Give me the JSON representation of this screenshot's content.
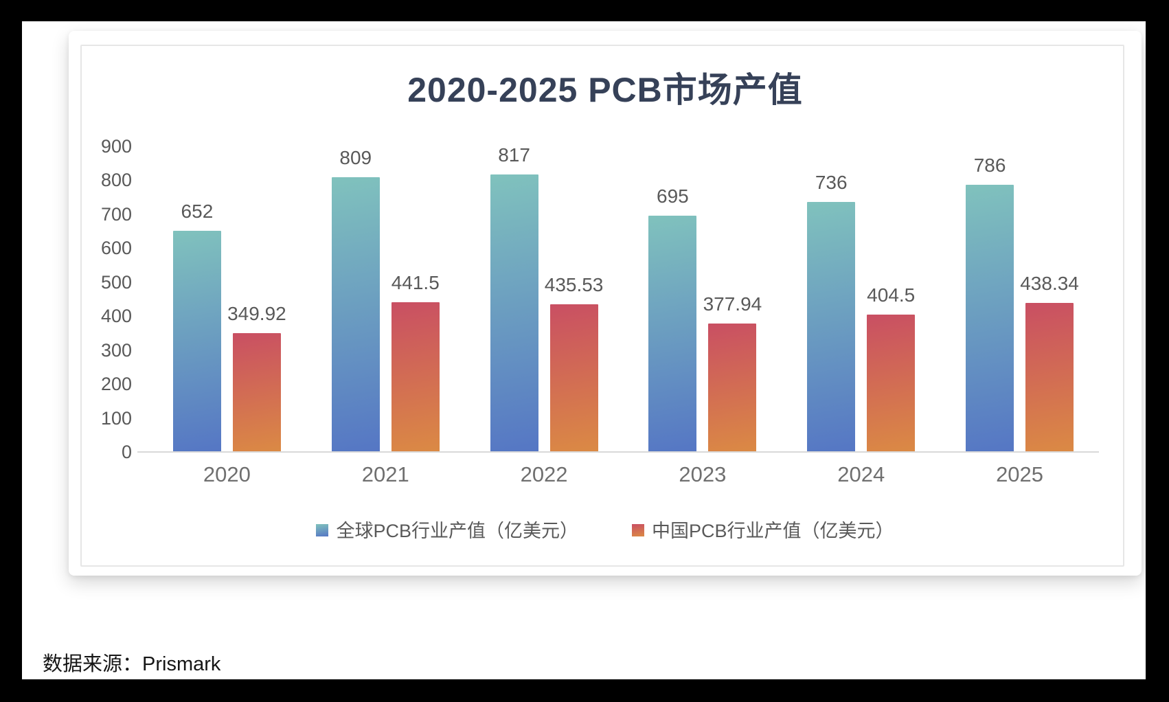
{
  "page": {
    "source_note": "数据来源：Prismark"
  },
  "chart_data": {
    "type": "bar",
    "title": "2020-2025 PCB市场产值",
    "categories": [
      "2020",
      "2021",
      "2022",
      "2023",
      "2024",
      "2025"
    ],
    "series": [
      {
        "key": "global",
        "name": "全球PCB行业产值（亿美元）",
        "values": [
          652,
          809,
          817,
          695,
          736,
          786
        ],
        "color_top": "#80C2BD",
        "color_bottom": "#5576C4"
      },
      {
        "key": "china",
        "name": "中国PCB行业产值（亿美元）",
        "values": [
          349.92,
          441.5,
          435.53,
          377.94,
          404.5,
          438.34
        ],
        "color_top": "#C94F63",
        "color_bottom": "#DB8A44"
      }
    ],
    "ylim": [
      0,
      900
    ],
    "yticks": [
      0,
      100,
      200,
      300,
      400,
      500,
      600,
      700,
      800,
      900
    ],
    "grid": false,
    "legend_position": "bottom",
    "data_labels": true,
    "colors": {
      "title": "#364158",
      "axis_text": "#595959",
      "axis_line": "#d9d9d9"
    }
  }
}
